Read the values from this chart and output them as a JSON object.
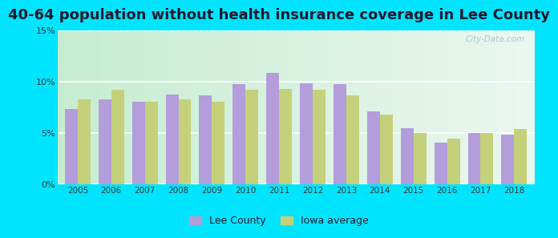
{
  "title": "40-64 population without health insurance coverage in Lee County",
  "years": [
    2005,
    2006,
    2007,
    2008,
    2009,
    2010,
    2011,
    2012,
    2013,
    2014,
    2015,
    2016,
    2017,
    2018
  ],
  "lee_county": [
    7.4,
    8.3,
    8.1,
    8.8,
    8.7,
    9.8,
    10.9,
    9.9,
    9.8,
    7.1,
    5.5,
    4.1,
    5.0,
    4.9
  ],
  "iowa_avg": [
    8.3,
    9.2,
    8.1,
    8.3,
    8.1,
    9.2,
    9.3,
    9.2,
    8.7,
    6.8,
    5.0,
    4.5,
    5.0,
    5.4
  ],
  "lee_color": "#b39ddb",
  "iowa_color": "#c5d17a",
  "outer_bg": "#00e5ff",
  "plot_bg_left": "#c8ecd4",
  "plot_bg_right": "#eaf8f0",
  "ylim": [
    0,
    15
  ],
  "yticks": [
    0,
    5,
    10,
    15
  ],
  "ytick_labels": [
    "0%",
    "5%",
    "10%",
    "15%"
  ],
  "title_fontsize": 13,
  "legend_labels": [
    "Lee County",
    "Iowa average"
  ],
  "watermark": "City-Data.com"
}
